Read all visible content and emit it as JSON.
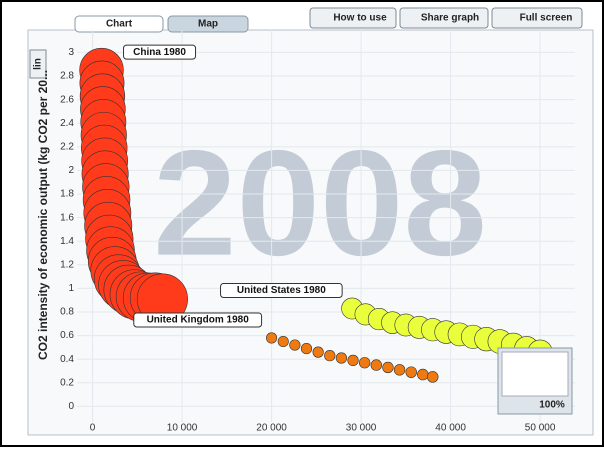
{
  "ui": {
    "tabs": [
      "Chart",
      "Map"
    ],
    "buttons": [
      "How to use",
      "Share graph",
      "Full screen"
    ],
    "scale_toggle": "lin",
    "zoom": "100%"
  },
  "chart_data": {
    "type": "scatter",
    "year_label": "2008",
    "ylabel": "CO2 intensity of economic output (kg CO2 per 20...",
    "xlim": [
      -4200,
      53900
    ],
    "ylim": [
      -0.2,
      3.19
    ],
    "xticks": [
      0,
      {
        "value": 10000,
        "label": "10 000"
      },
      {
        "value": 20000,
        "label": "20 000"
      },
      {
        "value": 30000,
        "label": "30 000"
      },
      {
        "value": 40000,
        "label": "40 000"
      },
      {
        "value": 50000,
        "label": "50 000"
      }
    ],
    "yticks": [
      0,
      0.2,
      0.4,
      0.6,
      0.8,
      1,
      1.2,
      1.4,
      1.6,
      1.8,
      2,
      2.2,
      2.4,
      2.6,
      2.8,
      3
    ],
    "grid": true,
    "series": [
      {
        "label": "China 1980",
        "color": "#ff3b1c",
        "x": [
          1000,
          1050,
          1100,
          1150,
          1200,
          1250,
          1300,
          1350,
          1400,
          1480,
          1560,
          1650,
          1750,
          1870,
          2000,
          2200,
          2500,
          2900,
          3400,
          4000,
          4700,
          5400,
          6200,
          7000,
          7800
        ],
        "values": [
          2.85,
          2.74,
          2.63,
          2.52,
          2.41,
          2.3,
          2.19,
          2.08,
          1.97,
          1.86,
          1.75,
          1.64,
          1.53,
          1.42,
          1.32,
          1.23,
          1.15,
          1.08,
          1.03,
          0.99,
          0.95,
          0.93,
          0.92,
          0.92,
          0.91
        ],
        "sizes": [
          981,
          1000,
          1016,
          1030,
          1044,
          1058,
          1071,
          1084,
          1097,
          1110,
          1122,
          1134,
          1146,
          1158,
          1170,
          1182,
          1194,
          1206,
          1218,
          1230,
          1242,
          1254,
          1266,
          1280,
          1300
        ]
      },
      {
        "label": "United States 1980",
        "color": "#e9ff3c",
        "x": [
          29000,
          30500,
          32000,
          33500,
          35000,
          36500,
          38000,
          39500,
          41000,
          42500,
          44000,
          45500,
          47000,
          48500,
          50000
        ],
        "values": [
          0.83,
          0.78,
          0.74,
          0.71,
          0.69,
          0.67,
          0.65,
          0.63,
          0.61,
          0.59,
          0.57,
          0.55,
          0.52,
          0.49,
          0.46
        ],
        "sizes": [
          228,
          233,
          238,
          244,
          249,
          255,
          260,
          266,
          272,
          278,
          284,
          290,
          295,
          300,
          304
        ]
      },
      {
        "label": "United Kingdom 1980",
        "color": "#f07a12",
        "x": [
          20000,
          21300,
          22600,
          23900,
          25200,
          26500,
          27800,
          29100,
          30400,
          31700,
          33000,
          34300,
          35600,
          36900,
          38000
        ],
        "values": [
          0.58,
          0.55,
          0.52,
          0.49,
          0.46,
          0.43,
          0.41,
          0.39,
          0.37,
          0.35,
          0.33,
          0.31,
          0.29,
          0.27,
          0.25
        ],
        "sizes": [
          56,
          56,
          57,
          57,
          57,
          58,
          58,
          58,
          59,
          59,
          59,
          60,
          60,
          61,
          61
        ]
      }
    ]
  }
}
